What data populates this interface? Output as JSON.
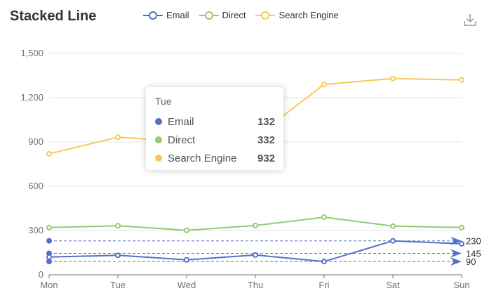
{
  "chart_data": {
    "type": "line",
    "title": "Stacked Line",
    "categories": [
      "Mon",
      "Tue",
      "Wed",
      "Thu",
      "Fri",
      "Sat",
      "Sun"
    ],
    "ylim": [
      0,
      1500
    ],
    "yticks": [
      "0",
      "300",
      "600",
      "900",
      "1,200",
      "1,500"
    ],
    "grid": "horizontal",
    "legend_position": "top",
    "series": [
      {
        "name": "Email",
        "color": "#5470c6",
        "values": [
          120,
          132,
          101,
          134,
          90,
          230,
          210
        ]
      },
      {
        "name": "Direct",
        "color": "#91cc75",
        "values": [
          320,
          332,
          301,
          334,
          390,
          330,
          320
        ]
      },
      {
        "name": "Search Engine",
        "color": "#fac858",
        "values": [
          820,
          932,
          901,
          934,
          1290,
          1330,
          1320
        ]
      }
    ],
    "mark_lines": [
      {
        "series": "Email",
        "value": 230,
        "label": "230"
      },
      {
        "series": "Email",
        "value": 145,
        "label": "145"
      },
      {
        "series": "Email",
        "value": 90,
        "label": "90"
      }
    ]
  },
  "tooltip": {
    "category": "Tue",
    "rows": [
      {
        "name": "Email",
        "value": "132",
        "color": "#5470c6"
      },
      {
        "name": "Direct",
        "value": "332",
        "color": "#91cc75"
      },
      {
        "name": "Search Engine",
        "value": "932",
        "color": "#fac858"
      }
    ]
  },
  "toolbox": {
    "icon": "download-icon"
  }
}
